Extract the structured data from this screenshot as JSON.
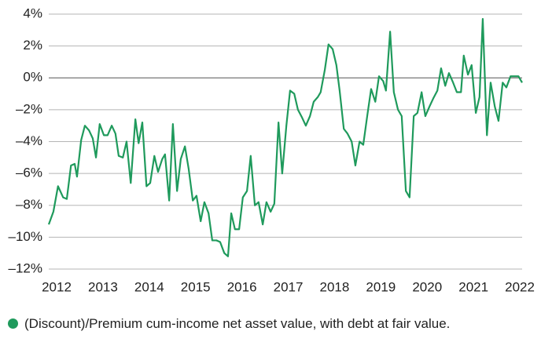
{
  "chart_data": {
    "type": "line",
    "x": [
      2011.83,
      2011.93,
      2012.03,
      2012.14,
      2012.22,
      2012.31,
      2012.39,
      2012.44,
      2012.53,
      2012.61,
      2012.7,
      2012.78,
      2012.85,
      2012.93,
      2013.02,
      2013.1,
      2013.19,
      2013.27,
      2013.34,
      2013.43,
      2013.51,
      2013.6,
      2013.7,
      2013.77,
      2013.85,
      2013.94,
      2014.02,
      2014.11,
      2014.19,
      2014.28,
      2014.34,
      2014.43,
      2014.51,
      2014.6,
      2014.68,
      2014.77,
      2014.85,
      2014.94,
      2015.02,
      2015.11,
      2015.19,
      2015.28,
      2015.36,
      2015.45,
      2015.53,
      2015.62,
      2015.7,
      2015.77,
      2015.85,
      2015.94,
      2016.02,
      2016.11,
      2016.19,
      2016.28,
      2016.36,
      2016.45,
      2016.53,
      2016.62,
      2016.7,
      2016.79,
      2016.87,
      2016.96,
      2017.04,
      2017.13,
      2017.21,
      2017.3,
      2017.38,
      2017.47,
      2017.55,
      2017.64,
      2017.7,
      2017.79,
      2017.87,
      2017.96,
      2018.04,
      2018.11,
      2018.2,
      2018.28,
      2018.37,
      2018.45,
      2018.54,
      2018.62,
      2018.71,
      2018.79,
      2018.88,
      2018.96,
      2019.05,
      2019.11,
      2019.2,
      2019.28,
      2019.37,
      2019.45,
      2019.54,
      2019.62,
      2019.71,
      2019.79,
      2019.88,
      2019.96,
      2020.05,
      2020.13,
      2020.22,
      2020.3,
      2020.39,
      2020.47,
      2020.56,
      2020.64,
      2020.73,
      2020.79,
      2020.88,
      2020.96,
      2021.05,
      2021.13,
      2021.2,
      2021.29,
      2021.37,
      2021.46,
      2021.54,
      2021.63,
      2021.71,
      2021.8,
      2021.88,
      2021.97,
      2022.05
    ],
    "series": [
      {
        "name": "(Discount)/Premium cum-income net asset value, with debt at fair value.",
        "color": "#1f9a5c",
        "values": [
          -9.2,
          -8.4,
          -6.8,
          -7.5,
          -7.6,
          -5.5,
          -5.4,
          -6.2,
          -3.9,
          -3.0,
          -3.3,
          -3.8,
          -5.0,
          -2.9,
          -3.6,
          -3.6,
          -3.0,
          -3.5,
          -4.9,
          -5.0,
          -4.0,
          -6.6,
          -2.6,
          -4.1,
          -2.8,
          -6.8,
          -6.6,
          -4.9,
          -5.9,
          -5.1,
          -4.8,
          -7.7,
          -2.9,
          -7.1,
          -5.1,
          -4.3,
          -5.7,
          -7.7,
          -7.4,
          -9.0,
          -7.8,
          -8.5,
          -10.2,
          -10.2,
          -10.3,
          -11.0,
          -11.2,
          -8.5,
          -9.5,
          -9.5,
          -7.5,
          -7.1,
          -4.9,
          -8.0,
          -7.8,
          -9.2,
          -7.8,
          -8.4,
          -7.9,
          -2.8,
          -6.0,
          -3.0,
          -0.8,
          -1.0,
          -2.0,
          -2.5,
          -3.0,
          -2.4,
          -1.5,
          -1.2,
          -0.9,
          0.5,
          2.1,
          1.8,
          0.8,
          -0.8,
          -3.2,
          -3.5,
          -4.0,
          -5.5,
          -4.0,
          -4.2,
          -2.3,
          -0.7,
          -1.5,
          0.1,
          -0.2,
          -0.8,
          2.9,
          -0.9,
          -2.0,
          -2.4,
          -7.1,
          -7.5,
          -2.4,
          -2.2,
          -0.9,
          -2.4,
          -1.8,
          -1.3,
          -0.8,
          0.6,
          -0.5,
          0.3,
          -0.3,
          -0.9,
          -0.9,
          1.4,
          0.2,
          0.8,
          -2.2,
          -1.2,
          3.7,
          -3.6,
          -0.3,
          -1.8,
          -2.7,
          -0.3,
          -0.6,
          0.1,
          0.1,
          0.1,
          -0.3
        ]
      }
    ],
    "xlim": [
      2011.83,
      2022.05
    ],
    "xticks": [
      2012,
      2013,
      2014,
      2015,
      2016,
      2017,
      2018,
      2019,
      2020,
      2021,
      2022
    ],
    "ylim": [
      -12,
      4
    ],
    "yticks": [
      {
        "value": -12,
        "label": "–12%"
      },
      {
        "value": -10,
        "label": "–10%"
      },
      {
        "value": -8,
        "label": "–8%"
      },
      {
        "value": -6,
        "label": "–6%"
      },
      {
        "value": -4,
        "label": "–4%"
      },
      {
        "value": -2,
        "label": "–2%"
      },
      {
        "value": 0,
        "label": "0%"
      },
      {
        "value": 2,
        "label": "2%"
      },
      {
        "value": 4,
        "label": "4%"
      }
    ],
    "grid": true
  }
}
